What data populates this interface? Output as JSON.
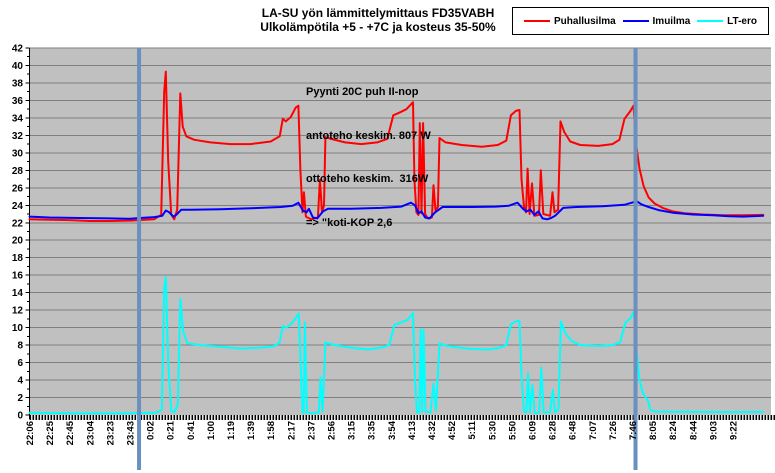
{
  "title": {
    "line1": "LA-SU yön lämmittelymittaus  FD35VABH",
    "line2": "Ulkolämpötila +5 - +7C ja kosteus 35-50%"
  },
  "legend": {
    "items": [
      {
        "label": "Puhallusilma",
        "color": "#ff0000"
      },
      {
        "label": "Imuilma",
        "color": "#0000ff"
      },
      {
        "label": "LT-ero",
        "color": "#00ffff"
      }
    ]
  },
  "annotation": {
    "lines": [
      "Pyynti 20C puh II-nop",
      "antoteho keskim. 807 W",
      "ottoteho keskim.  316W",
      "=> \"koti-KOP 2,6"
    ]
  },
  "chart_data": {
    "type": "line",
    "title": "LA-SU yön lämmittelymittaus FD35VABH — Ulkolämpötila +5 - +7C ja kosteus 35-50%",
    "xlabel": "",
    "ylabel": "",
    "ylim": [
      0,
      42
    ],
    "y_tick_step": 2,
    "grid": true,
    "plot_bg": "#c0c0c0",
    "grid_color": "#7f7f7f",
    "axis_color": "#000000",
    "legend_position": "top-right",
    "x_tick_labels": [
      "22:06",
      "22:25",
      "22:45",
      "23:04",
      "23:23",
      "23:43",
      "0:02",
      "0:21",
      "0:41",
      "1:00",
      "1:19",
      "1:39",
      "1:58",
      "2:17",
      "2:37",
      "2:56",
      "3:15",
      "3:35",
      "3:54",
      "4:13",
      "4:32",
      "4:52",
      "5:11",
      "5:30",
      "5:50",
      "6:09",
      "6:28",
      "6:48",
      "7:07",
      "7:26",
      "7:46",
      "8:05",
      "8:24",
      "8:44",
      "9:03",
      "9:22"
    ],
    "event_lines": {
      "color": "#6a90c0",
      "width": 4,
      "x_labels": [
        "23:43",
        "7:46"
      ],
      "x_idx": [
        5.45,
        30.15
      ]
    },
    "series": [
      {
        "name": "Puhallusilma",
        "color": "#ff0000",
        "points": [
          [
            0,
            22.4
          ],
          [
            1,
            22.35
          ],
          [
            2,
            22.3
          ],
          [
            3,
            22.2
          ],
          [
            4,
            22.2
          ],
          [
            5,
            22.25
          ],
          [
            5.45,
            22.3
          ],
          [
            6.2,
            22.4
          ],
          [
            6.55,
            22.9
          ],
          [
            6.7,
            37
          ],
          [
            6.78,
            39.3
          ],
          [
            6.9,
            29
          ],
          [
            7.05,
            23
          ],
          [
            7.2,
            22.4
          ],
          [
            7.35,
            23.5
          ],
          [
            7.5,
            36.8
          ],
          [
            7.62,
            33
          ],
          [
            7.8,
            31.9
          ],
          [
            8.2,
            31.5
          ],
          [
            9,
            31.2
          ],
          [
            10,
            31
          ],
          [
            11,
            31
          ],
          [
            12,
            31.3
          ],
          [
            12.45,
            31.9
          ],
          [
            12.6,
            33.9
          ],
          [
            12.75,
            33.6
          ],
          [
            13,
            34.1
          ],
          [
            13.25,
            35.2
          ],
          [
            13.38,
            35.4
          ],
          [
            13.48,
            28
          ],
          [
            13.58,
            23.2
          ],
          [
            13.65,
            25.5
          ],
          [
            13.75,
            22.7
          ],
          [
            14,
            22.4
          ],
          [
            14.35,
            22.6
          ],
          [
            14.45,
            26.9
          ],
          [
            14.55,
            23.2
          ],
          [
            14.65,
            24
          ],
          [
            14.72,
            31.8
          ],
          [
            15,
            31.6
          ],
          [
            15.7,
            31.2
          ],
          [
            16.5,
            31
          ],
          [
            17.3,
            31.2
          ],
          [
            17.8,
            31.6
          ],
          [
            18.1,
            34.3
          ],
          [
            18.4,
            34.6
          ],
          [
            18.75,
            35
          ],
          [
            19,
            35.6
          ],
          [
            19.08,
            35.8
          ],
          [
            19.15,
            27
          ],
          [
            19.25,
            23.2
          ],
          [
            19.35,
            22.9
          ],
          [
            19.42,
            33.4
          ],
          [
            19.5,
            23.1
          ],
          [
            19.58,
            33.4
          ],
          [
            19.68,
            23
          ],
          [
            19.82,
            22.5
          ],
          [
            20.02,
            22.6
          ],
          [
            20.1,
            26.3
          ],
          [
            20.2,
            23.4
          ],
          [
            20.32,
            23.8
          ],
          [
            20.4,
            31.7
          ],
          [
            20.7,
            31.2
          ],
          [
            21.5,
            30.9
          ],
          [
            22.5,
            30.7
          ],
          [
            23.3,
            30.9
          ],
          [
            23.72,
            31.4
          ],
          [
            23.95,
            34.3
          ],
          [
            24.2,
            34.8
          ],
          [
            24.38,
            34.9
          ],
          [
            24.48,
            27
          ],
          [
            24.6,
            23.8
          ],
          [
            24.7,
            23.2
          ],
          [
            24.78,
            28.2
          ],
          [
            24.88,
            23
          ],
          [
            25,
            26.5
          ],
          [
            25.12,
            22.8
          ],
          [
            25.35,
            22.9
          ],
          [
            25.44,
            28
          ],
          [
            25.56,
            23
          ],
          [
            25.9,
            22.8
          ],
          [
            26.02,
            25.5
          ],
          [
            26.12,
            23.2
          ],
          [
            26.3,
            23.5
          ],
          [
            26.42,
            33.6
          ],
          [
            26.6,
            32.4
          ],
          [
            26.9,
            31.3
          ],
          [
            27.4,
            30.9
          ],
          [
            28.3,
            30.8
          ],
          [
            29,
            31
          ],
          [
            29.35,
            31.5
          ],
          [
            29.6,
            33.9
          ],
          [
            29.9,
            34.8
          ],
          [
            30.05,
            35.4
          ],
          [
            30.18,
            31
          ],
          [
            30.35,
            28.2
          ],
          [
            30.55,
            26.2
          ],
          [
            30.8,
            24.9
          ],
          [
            31.1,
            24.2
          ],
          [
            31.5,
            23.7
          ],
          [
            32,
            23.3
          ],
          [
            32.6,
            23.1
          ],
          [
            33.5,
            22.95
          ],
          [
            34.5,
            22.85
          ],
          [
            35.5,
            22.85
          ],
          [
            36.5,
            22.9
          ]
        ]
      },
      {
        "name": "Imuilma",
        "color": "#0000ff",
        "points": [
          [
            0,
            22.7
          ],
          [
            1,
            22.6
          ],
          [
            2.5,
            22.55
          ],
          [
            4,
            22.5
          ],
          [
            5,
            22.45
          ],
          [
            5.5,
            22.55
          ],
          [
            6.2,
            22.65
          ],
          [
            6.6,
            22.8
          ],
          [
            6.78,
            23.4
          ],
          [
            6.95,
            23.2
          ],
          [
            7.15,
            22.7
          ],
          [
            7.3,
            22.9
          ],
          [
            7.55,
            23.5
          ],
          [
            8,
            23.5
          ],
          [
            9.5,
            23.55
          ],
          [
            11,
            23.65
          ],
          [
            12.5,
            23.8
          ],
          [
            13.1,
            23.95
          ],
          [
            13.38,
            24.3
          ],
          [
            13.6,
            23.4
          ],
          [
            13.78,
            23.2
          ],
          [
            13.9,
            23.6
          ],
          [
            14.1,
            22.6
          ],
          [
            14.32,
            22.5
          ],
          [
            14.6,
            23.3
          ],
          [
            14.85,
            23.6
          ],
          [
            16,
            23.6
          ],
          [
            17.5,
            23.7
          ],
          [
            18.5,
            23.85
          ],
          [
            18.98,
            24.3
          ],
          [
            19.18,
            24
          ],
          [
            19.35,
            23.1
          ],
          [
            19.5,
            23.3
          ],
          [
            19.68,
            22.6
          ],
          [
            19.9,
            22.5
          ],
          [
            20.18,
            23.2
          ],
          [
            20.55,
            23.8
          ],
          [
            22,
            23.8
          ],
          [
            23.2,
            23.85
          ],
          [
            23.85,
            23.95
          ],
          [
            24.28,
            24.3
          ],
          [
            24.55,
            23.6
          ],
          [
            24.72,
            23.3
          ],
          [
            24.92,
            23.5
          ],
          [
            25.12,
            22.9
          ],
          [
            25.32,
            23.3
          ],
          [
            25.52,
            22.5
          ],
          [
            25.75,
            22.4
          ],
          [
            25.95,
            22.55
          ],
          [
            26.15,
            22.8
          ],
          [
            26.55,
            23.7
          ],
          [
            27.2,
            23.8
          ],
          [
            28.5,
            23.9
          ],
          [
            29.6,
            24.05
          ],
          [
            30.05,
            24.35
          ],
          [
            30.18,
            24.5
          ],
          [
            30.45,
            24.1
          ],
          [
            30.8,
            23.8
          ],
          [
            31.3,
            23.45
          ],
          [
            32,
            23.15
          ],
          [
            33,
            22.95
          ],
          [
            34,
            22.85
          ],
          [
            34.8,
            22.75
          ],
          [
            35.5,
            22.7
          ],
          [
            36.5,
            22.8
          ]
        ]
      },
      {
        "name": "LT-ero",
        "color": "#00ffff",
        "points": [
          [
            0,
            0.25
          ],
          [
            2,
            0.2
          ],
          [
            5,
            0.2
          ],
          [
            6.3,
            0.25
          ],
          [
            6.58,
            0.6
          ],
          [
            6.7,
            14.5
          ],
          [
            6.78,
            15.8
          ],
          [
            6.9,
            6
          ],
          [
            7.05,
            0.5
          ],
          [
            7.2,
            0.3
          ],
          [
            7.38,
            1.2
          ],
          [
            7.5,
            13.3
          ],
          [
            7.64,
            9.6
          ],
          [
            7.85,
            8.2
          ],
          [
            8.5,
            8
          ],
          [
            9.5,
            7.8
          ],
          [
            10.5,
            7.6
          ],
          [
            11.5,
            7.7
          ],
          [
            12.2,
            7.9
          ],
          [
            12.45,
            8.3
          ],
          [
            12.6,
            10.2
          ],
          [
            12.78,
            10
          ],
          [
            13.05,
            10.5
          ],
          [
            13.28,
            11.2
          ],
          [
            13.4,
            11.6
          ],
          [
            13.5,
            5
          ],
          [
            13.58,
            0.3
          ],
          [
            13.64,
            0.2
          ],
          [
            13.7,
            10.6
          ],
          [
            13.8,
            0.3
          ],
          [
            14.05,
            0.2
          ],
          [
            14.4,
            0.3
          ],
          [
            14.48,
            4.3
          ],
          [
            14.58,
            0.4
          ],
          [
            14.72,
            8.3
          ],
          [
            15.2,
            8
          ],
          [
            16,
            7.7
          ],
          [
            16.8,
            7.5
          ],
          [
            17.5,
            7.7
          ],
          [
            17.9,
            8
          ],
          [
            18.15,
            10.3
          ],
          [
            18.5,
            10.6
          ],
          [
            18.8,
            10.9
          ],
          [
            19,
            11.4
          ],
          [
            19.08,
            11.7
          ],
          [
            19.18,
            4
          ],
          [
            19.28,
            0.3
          ],
          [
            19.4,
            0.3
          ],
          [
            19.46,
            9.8
          ],
          [
            19.54,
            0.4
          ],
          [
            19.6,
            9.8
          ],
          [
            19.7,
            0.4
          ],
          [
            19.95,
            0.3
          ],
          [
            20.1,
            3.6
          ],
          [
            20.22,
            0.5
          ],
          [
            20.4,
            8.2
          ],
          [
            20.8,
            7.9
          ],
          [
            21.8,
            7.6
          ],
          [
            22.8,
            7.5
          ],
          [
            23.4,
            7.7
          ],
          [
            23.72,
            8
          ],
          [
            23.95,
            10.4
          ],
          [
            24.2,
            10.7
          ],
          [
            24.38,
            10.8
          ],
          [
            24.48,
            4.5
          ],
          [
            24.6,
            0.4
          ],
          [
            24.72,
            0.3
          ],
          [
            24.8,
            4.8
          ],
          [
            24.9,
            0.3
          ],
          [
            25.02,
            3.4
          ],
          [
            25.14,
            0.2
          ],
          [
            25.36,
            0.3
          ],
          [
            25.46,
            5.4
          ],
          [
            25.58,
            0.3
          ],
          [
            25.9,
            0.3
          ],
          [
            26.04,
            2.9
          ],
          [
            26.14,
            0.3
          ],
          [
            26.32,
            0.7
          ],
          [
            26.44,
            10.7
          ],
          [
            26.65,
            9.4
          ],
          [
            26.95,
            8.5
          ],
          [
            27.4,
            8
          ],
          [
            28.3,
            7.9
          ],
          [
            29,
            8
          ],
          [
            29.38,
            8.3
          ],
          [
            29.65,
            10.6
          ],
          [
            29.92,
            11.1
          ],
          [
            30.08,
            11.9
          ],
          [
            30.22,
            7
          ],
          [
            30.35,
            4
          ],
          [
            30.5,
            2.6
          ],
          [
            30.65,
            2
          ],
          [
            30.78,
            1.6
          ],
          [
            30.88,
            0.6
          ],
          [
            31.1,
            0.4
          ],
          [
            32,
            0.38
          ],
          [
            33.5,
            0.35
          ],
          [
            35,
            0.33
          ],
          [
            36.5,
            0.35
          ]
        ]
      }
    ]
  }
}
